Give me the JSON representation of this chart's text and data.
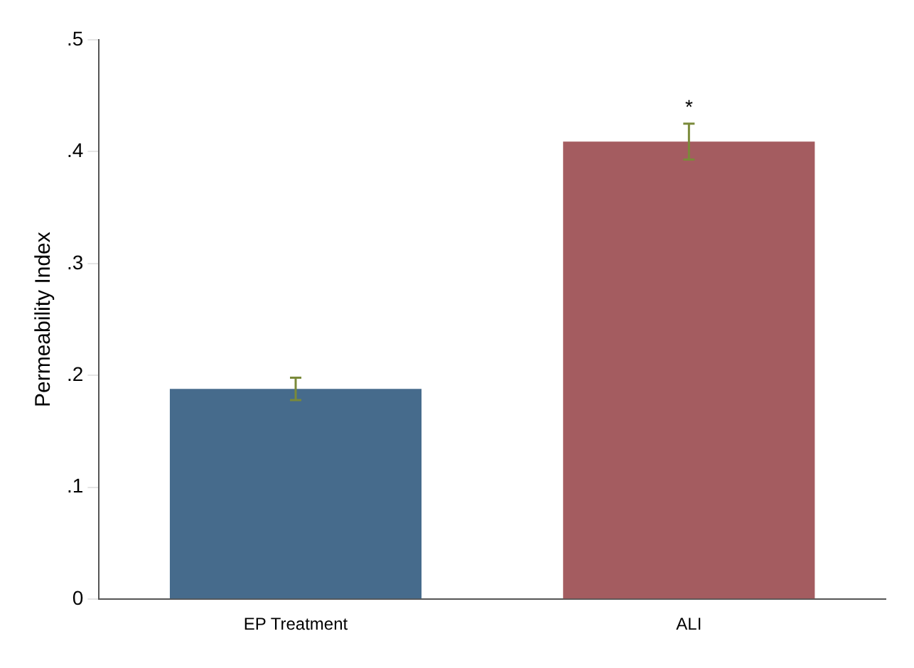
{
  "chart_data": {
    "type": "bar",
    "ylabel": "Permeability Index",
    "categories": [
      "EP Treatment",
      "ALI"
    ],
    "values": [
      0.188,
      0.409
    ],
    "colors": [
      "#466b8c",
      "#a45c60"
    ],
    "errors": [
      0.01,
      0.016
    ],
    "ylim": [
      0,
      0.5
    ],
    "yticks": [
      {
        "value": 0,
        "label": "0"
      },
      {
        "value": 0.1,
        "label": ".1"
      },
      {
        "value": 0.2,
        "label": ".2"
      },
      {
        "value": 0.3,
        "label": ".3"
      },
      {
        "value": 0.4,
        "label": ".4"
      },
      {
        "value": 0.5,
        "label": ".5"
      }
    ],
    "grid": false,
    "legend": false,
    "annotations": [
      "*"
    ]
  }
}
